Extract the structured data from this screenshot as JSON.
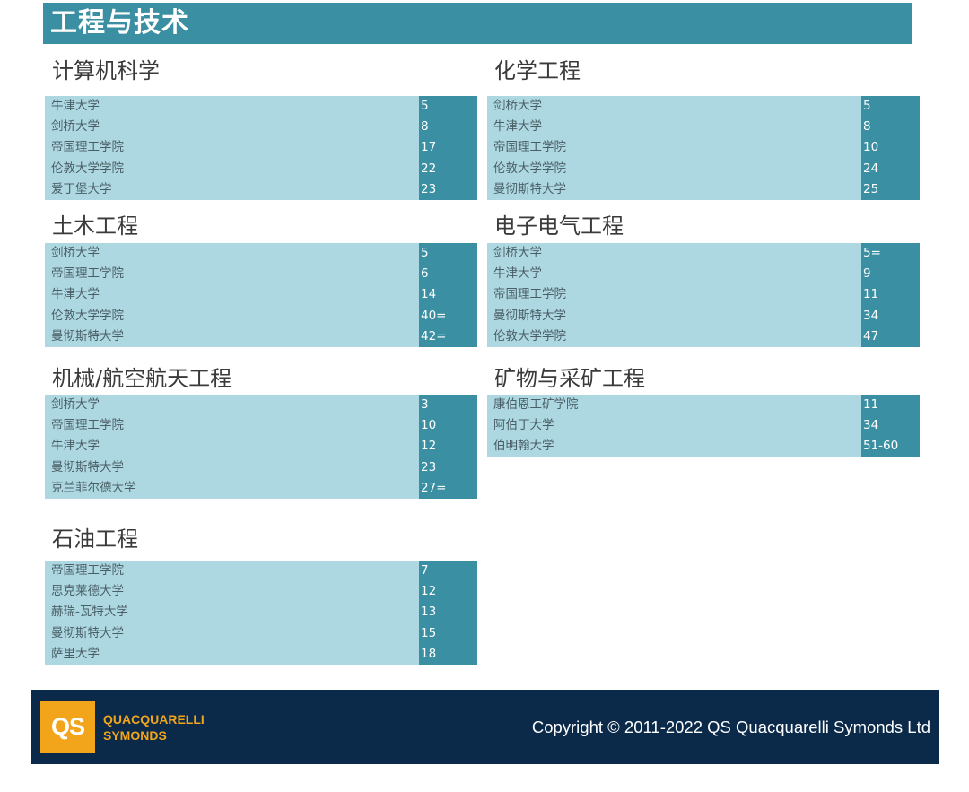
{
  "header": {
    "title": "工程与技术"
  },
  "sections": [
    {
      "title": "计算机科学",
      "rows": [
        {
          "name": "牛津大学",
          "rank": "5"
        },
        {
          "name": "剑桥大学",
          "rank": "8"
        },
        {
          "name": "帝国理工学院",
          "rank": "17"
        },
        {
          "name": "伦敦大学学院",
          "rank": "22"
        },
        {
          "name": "爱丁堡大学",
          "rank": "23"
        }
      ]
    },
    {
      "title": "化学工程",
      "rows": [
        {
          "name": "剑桥大学",
          "rank": "5"
        },
        {
          "name": "牛津大学",
          "rank": "8"
        },
        {
          "name": "帝国理工学院",
          "rank": "10"
        },
        {
          "name": "伦敦大学学院",
          "rank": "24"
        },
        {
          "name": "曼彻斯特大学",
          "rank": "25"
        }
      ]
    },
    {
      "title": "土木工程",
      "rows": [
        {
          "name": "剑桥大学",
          "rank": "5"
        },
        {
          "name": "帝国理工学院",
          "rank": "6"
        },
        {
          "name": "牛津大学",
          "rank": "14"
        },
        {
          "name": "伦敦大学学院",
          "rank": "40="
        },
        {
          "name": "曼彻斯特大学",
          "rank": "42="
        }
      ]
    },
    {
      "title": "电子电气工程",
      "rows": [
        {
          "name": "剑桥大学",
          "rank": "5="
        },
        {
          "name": "牛津大学",
          "rank": "9"
        },
        {
          "name": "帝国理工学院",
          "rank": "11"
        },
        {
          "name": "曼彻斯特大学",
          "rank": "34"
        },
        {
          "name": "伦敦大学学院",
          "rank": "47"
        }
      ]
    },
    {
      "title": "机械/航空航天工程",
      "rows": [
        {
          "name": "剑桥大学",
          "rank": "3"
        },
        {
          "name": "帝国理工学院",
          "rank": "10"
        },
        {
          "name": "牛津大学",
          "rank": "12"
        },
        {
          "name": "曼彻斯特大学",
          "rank": "23"
        },
        {
          "name": "克兰菲尔德大学",
          "rank": "27="
        }
      ]
    },
    {
      "title": "矿物与采矿工程",
      "rows": [
        {
          "name": "康伯恩工矿学院",
          "rank": "11"
        },
        {
          "name": "阿伯丁大学",
          "rank": "34"
        },
        {
          "name": "伯明翰大学",
          "rank": "51-60"
        }
      ]
    },
    {
      "title": "石油工程",
      "rows": [
        {
          "name": "帝国理工学院",
          "rank": "7"
        },
        {
          "name": "思克莱德大学",
          "rank": "12"
        },
        {
          "name": "赫瑞-瓦特大学",
          "rank": "13"
        },
        {
          "name": "曼彻斯特大学",
          "rank": "15"
        },
        {
          "name": "萨里大学",
          "rank": "18"
        }
      ]
    }
  ],
  "footer": {
    "logo_mark": "QS",
    "logo_line1": "QUACQUARELLI",
    "logo_line2": "SYMONDS",
    "copyright": "Copyright © 2011-2022 QS Quacquarelli Symonds Ltd"
  },
  "colors": {
    "header_bg": "#3a8fa3",
    "name_cell_bg": "#add8e1",
    "rank_cell_bg": "#3a8fa3",
    "footer_bg": "#0b2a4a",
    "logo_orange": "#f2a51b"
  }
}
